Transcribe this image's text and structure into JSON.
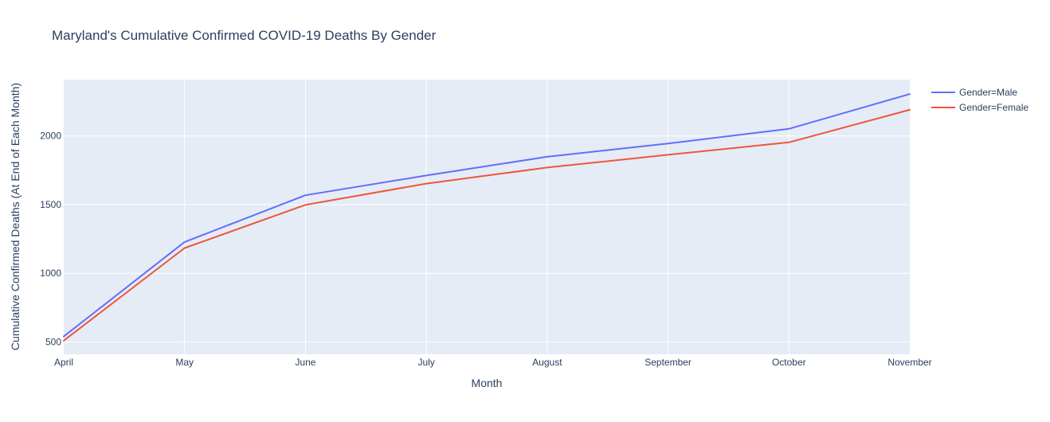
{
  "chart_data": {
    "type": "line",
    "title": "Maryland's Cumulative Confirmed COVID-19 Deaths By Gender",
    "xlabel": "Month",
    "ylabel": "Cumulative Confirmed Deaths (At End of Each Month)",
    "categories": [
      "April",
      "May",
      "June",
      "July",
      "August",
      "September",
      "October",
      "November"
    ],
    "yticks": [
      500,
      1000,
      1500,
      2000
    ],
    "ylim": [
      410,
      2410
    ],
    "grid": true,
    "legend_position": "top-right",
    "background_color": "#e5ecf6",
    "series": [
      {
        "name": "Gender=Male",
        "color": "#636efa",
        "values": [
          540,
          1228,
          1568,
          1712,
          1848,
          1945,
          2052,
          2305
        ]
      },
      {
        "name": "Gender=Female",
        "color": "#ef553b",
        "values": [
          510,
          1184,
          1498,
          1653,
          1770,
          1863,
          1953,
          2190
        ]
      }
    ]
  }
}
